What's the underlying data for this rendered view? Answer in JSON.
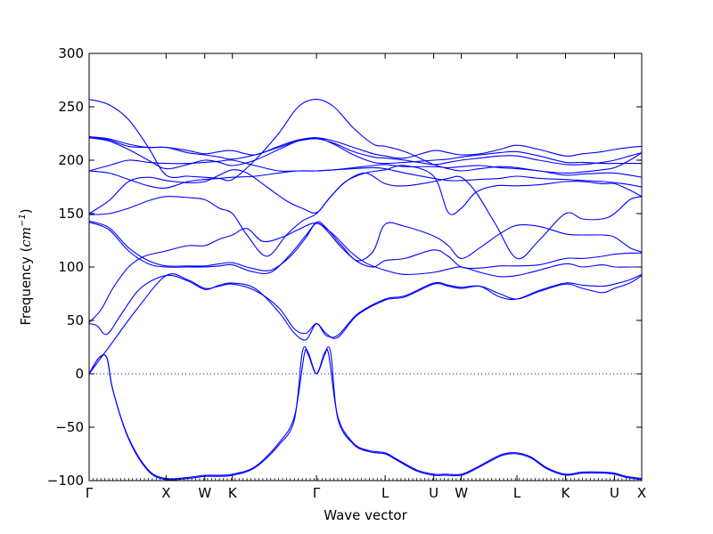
{
  "chart_data": {
    "type": "line",
    "xlabel": "Wave vector",
    "ylabel_main": "Frequency (",
    "ylabel_unit": "cm",
    "ylabel_exp": "−1",
    "ylabel_close": ")",
    "ylim": [
      -100,
      300
    ],
    "yticks": [
      -100,
      -50,
      0,
      50,
      100,
      150,
      200,
      250,
      300
    ],
    "ytick_labels": [
      "−100",
      "−50",
      "0",
      "50",
      "100",
      "150",
      "200",
      "250",
      "300"
    ],
    "xlim": [
      0,
      14
    ],
    "xticks": [
      {
        "x": 0,
        "label": "Γ"
      },
      {
        "x": 1.95,
        "label": "X"
      },
      {
        "x": 2.93,
        "label": "W"
      },
      {
        "x": 3.63,
        "label": "K"
      },
      {
        "x": 5.76,
        "label": "Γ"
      },
      {
        "x": 7.5,
        "label": "L"
      },
      {
        "x": 8.73,
        "label": "U"
      },
      {
        "x": 9.43,
        "label": "W"
      },
      {
        "x": 10.84,
        "label": "L"
      },
      {
        "x": 12.07,
        "label": "K"
      },
      {
        "x": 13.31,
        "label": "U"
      },
      {
        "x": 14.0,
        "label": "X"
      }
    ],
    "zero_line": {
      "y": 0,
      "style": "dotted",
      "color": "#0000ff"
    },
    "grid": false,
    "legend": "none",
    "line_color": "#0000ff",
    "series": [
      {
        "x": [
          0,
          0.25,
          0.45,
          0.6,
          1.0,
          1.5,
          1.95,
          2.5,
          2.93,
          3.3,
          3.63,
          4.2,
          4.8,
          5.2,
          5.45,
          5.55,
          5.76,
          5.97,
          6.07,
          6.3,
          6.7,
          7.1,
          7.5,
          7.8,
          8.3,
          8.73,
          9.0,
          9.43,
          9.8,
          10.2,
          10.5,
          10.84,
          11.2,
          11.6,
          12.07,
          12.5,
          13.0,
          13.31,
          13.6,
          14.0
        ],
        "values": [
          0,
          15,
          15,
          -15,
          -60,
          -90,
          -98,
          -97,
          -95,
          -95,
          -94,
          -87,
          -65,
          -40,
          18,
          18,
          0,
          18,
          18,
          -40,
          -65,
          -72,
          -74,
          -80,
          -90,
          -94,
          -94,
          -94,
          -88,
          -80,
          -75,
          -74,
          -78,
          -88,
          -94,
          -92,
          -92,
          -93,
          -96,
          -98
        ]
      },
      {
        "x": [
          0,
          0.25,
          0.45,
          0.6,
          1.0,
          1.5,
          1.95,
          2.5,
          2.93,
          3.3,
          3.63,
          4.2,
          4.8,
          5.2,
          5.4,
          5.55,
          5.76,
          5.97,
          6.12,
          6.3,
          6.7,
          7.1,
          7.5,
          7.8,
          8.3,
          8.73,
          9.0,
          9.43,
          9.8,
          10.2,
          10.5,
          10.84,
          11.2,
          11.6,
          12.07,
          12.5,
          13.0,
          13.31,
          13.6,
          14.0
        ],
        "values": [
          0,
          15,
          15,
          -15,
          -61,
          -91,
          -99,
          -98,
          -96,
          -96,
          -95,
          -88,
          -67,
          -43,
          20,
          20,
          0,
          20,
          20,
          -42,
          -66,
          -73,
          -75,
          -81,
          -91,
          -95,
          -95,
          -95,
          -89,
          -81,
          -76,
          -75,
          -79,
          -89,
          -95,
          -93,
          -93,
          -94,
          -97,
          -99
        ]
      },
      {
        "x": [
          0,
          0.6,
          1.2,
          1.95,
          2.5,
          2.93,
          3.3,
          3.63,
          4.2,
          4.8,
          5.2,
          5.5,
          5.76,
          6.0,
          6.3,
          6.8,
          7.5,
          8.0,
          8.73,
          9.1,
          9.43,
          9.9,
          10.4,
          10.84,
          11.4,
          12.07,
          12.5,
          13.0,
          13.31,
          13.7,
          14.0
        ],
        "values": [
          0,
          30,
          60,
          92,
          88,
          80,
          82,
          84,
          78,
          62,
          42,
          38,
          47,
          38,
          34,
          55,
          69,
          72,
          84,
          82,
          80,
          82,
          75,
          70,
          77,
          84,
          80,
          76,
          80,
          85,
          92
        ]
      },
      {
        "x": [
          0,
          0.2,
          0.45,
          0.8,
          1.3,
          1.95,
          2.5,
          2.93,
          3.3,
          3.63,
          4.2,
          4.8,
          5.2,
          5.5,
          5.76,
          6.0,
          6.3,
          6.8,
          7.5,
          8.0,
          8.73,
          9.1,
          9.43,
          9.9,
          10.4,
          10.84,
          11.4,
          12.07,
          12.5,
          13.0,
          13.31,
          13.7,
          14.0
        ],
        "values": [
          47,
          45,
          37,
          55,
          80,
          92,
          87,
          79,
          83,
          85,
          80,
          58,
          38,
          32,
          47,
          36,
          36,
          56,
          70,
          73,
          85,
          83,
          81,
          82,
          72,
          70,
          78,
          85,
          83,
          82,
          84,
          88,
          93
        ]
      },
      {
        "x": [
          0,
          0.3,
          0.6,
          1.0,
          1.4,
          1.95,
          2.5,
          2.93,
          3.3,
          3.63,
          4.0,
          4.4,
          4.9,
          5.3,
          5.76,
          6.2,
          6.6,
          7.0,
          7.5,
          8.0,
          8.73,
          9.1,
          9.43,
          9.9,
          10.4,
          10.84,
          11.3,
          12.07,
          12.5,
          13.0,
          13.31,
          13.7,
          14.0
        ],
        "values": [
          48,
          60,
          80,
          100,
          110,
          115,
          120,
          120,
          126,
          130,
          136,
          124,
          128,
          135,
          141,
          130,
          115,
          104,
          97,
          93,
          95,
          98,
          100,
          95,
          91,
          92,
          96,
          103,
          100,
          102,
          100,
          100,
          100
        ]
      },
      {
        "x": [
          0,
          0.5,
          1.0,
          1.5,
          1.95,
          2.5,
          2.93,
          3.3,
          3.63,
          4.1,
          4.6,
          5.1,
          5.5,
          5.76,
          6.0,
          6.4,
          6.8,
          7.2,
          7.5,
          8.0,
          8.73,
          9.1,
          9.43,
          9.9,
          10.4,
          10.84,
          11.4,
          12.07,
          12.5,
          13.0,
          13.31,
          13.7,
          14.0
        ],
        "values": [
          142,
          135,
          115,
          103,
          100,
          100,
          100,
          101,
          102,
          96,
          95,
          112,
          130,
          141,
          135,
          118,
          105,
          100,
          106,
          108,
          116,
          110,
          100,
          99,
          101,
          101,
          102,
          108,
          108,
          110,
          112,
          113,
          113
        ]
      },
      {
        "x": [
          0,
          0.5,
          1.0,
          1.5,
          1.95,
          2.5,
          2.93,
          3.3,
          3.63,
          4.1,
          4.6,
          5.1,
          5.5,
          5.76,
          6.0,
          6.4,
          6.8,
          7.2,
          7.5,
          8.0,
          8.73,
          9.1,
          9.43,
          9.9,
          10.4,
          10.84,
          11.4,
          12.07,
          12.5,
          13.0,
          13.31,
          13.7,
          14.0
        ],
        "values": [
          143,
          137,
          118,
          106,
          101,
          101,
          101,
          103,
          104,
          99,
          97,
          110,
          128,
          142,
          137,
          120,
          106,
          115,
          140,
          138,
          129,
          120,
          108,
          118,
          131,
          139,
          138,
          131,
          130,
          130,
          128,
          118,
          114
        ]
      },
      {
        "x": [
          0,
          0.5,
          1.0,
          1.5,
          1.95,
          2.5,
          2.93,
          3.3,
          3.63,
          4.0,
          4.5,
          5.0,
          5.4,
          5.76,
          6.1,
          6.5,
          7.0,
          7.5,
          8.0,
          8.73,
          9.1,
          9.43,
          9.8,
          10.3,
          10.84,
          11.4,
          12.07,
          12.5,
          13.0,
          13.31,
          13.7,
          14.0
        ],
        "values": [
          149,
          150,
          155,
          162,
          166,
          165,
          163,
          155,
          150,
          130,
          110,
          130,
          143,
          150,
          165,
          180,
          188,
          178,
          176,
          180,
          183,
          184,
          170,
          140,
          108,
          125,
          150,
          145,
          145,
          150,
          163,
          166
        ]
      },
      {
        "x": [
          0,
          0.5,
          1.0,
          1.5,
          1.95,
          2.5,
          2.93,
          3.3,
          3.63,
          4.0,
          4.5,
          5.0,
          5.4,
          5.76,
          6.1,
          6.5,
          7.0,
          7.5,
          8.0,
          8.73,
          9.1,
          9.43,
          9.8,
          10.3,
          10.84,
          11.4,
          12.07,
          12.5,
          13.0,
          13.31,
          13.7,
          14.0
        ],
        "values": [
          150,
          162,
          180,
          184,
          181,
          179,
          180,
          186,
          191,
          188,
          175,
          162,
          155,
          151,
          165,
          180,
          188,
          191,
          195,
          185,
          151,
          155,
          170,
          176,
          176,
          177,
          180,
          180,
          178,
          178,
          172,
          166
        ]
      },
      {
        "x": [
          0,
          0.5,
          1.0,
          1.5,
          1.95,
          2.5,
          2.93,
          3.3,
          3.63,
          4.2,
          4.8,
          5.3,
          5.76,
          6.2,
          6.7,
          7.2,
          7.5,
          8.0,
          8.73,
          9.1,
          9.43,
          9.9,
          10.4,
          10.84,
          11.4,
          12.07,
          12.5,
          13.0,
          13.31,
          13.7,
          14.0
        ],
        "values": [
          190,
          188,
          182,
          176,
          174,
          180,
          182,
          183,
          184,
          185,
          188,
          190,
          190,
          191,
          192,
          193,
          192,
          188,
          183,
          181,
          181,
          182,
          183,
          185,
          183,
          182,
          181,
          180,
          179,
          177,
          175
        ]
      },
      {
        "x": [
          0,
          0.5,
          1.0,
          1.5,
          1.95,
          2.5,
          2.93,
          3.3,
          3.63,
          4.2,
          4.8,
          5.3,
          5.76,
          6.2,
          6.7,
          7.2,
          7.5,
          8.0,
          8.73,
          9.1,
          9.43,
          9.9,
          10.4,
          10.84,
          11.4,
          12.07,
          12.5,
          13.0,
          13.31,
          13.7,
          14.0
        ],
        "values": [
          190,
          195,
          200,
          198,
          197,
          197,
          198,
          199,
          200,
          195,
          190,
          190,
          190,
          191,
          193,
          195,
          196,
          194,
          194,
          193,
          194,
          195,
          193,
          192,
          190,
          186,
          187,
          188,
          188,
          186,
          184
        ]
      },
      {
        "x": [
          0,
          0.5,
          1.0,
          1.5,
          1.95,
          2.5,
          2.93,
          3.3,
          3.63,
          4.2,
          4.8,
          5.3,
          5.76,
          6.2,
          6.7,
          7.2,
          7.5,
          8.0,
          8.73,
          9.1,
          9.43,
          9.9,
          10.4,
          10.84,
          11.4,
          12.07,
          12.5,
          13.0,
          13.31,
          13.7,
          14.0
        ],
        "values": [
          221,
          218,
          210,
          200,
          192,
          196,
          200,
          198,
          195,
          200,
          210,
          218,
          221,
          215,
          205,
          198,
          197,
          198,
          200,
          201,
          203,
          205,
          207,
          208,
          204,
          198,
          198,
          197,
          197,
          197,
          197
        ]
      },
      {
        "x": [
          0,
          0.5,
          1.0,
          1.5,
          1.95,
          2.5,
          2.93,
          3.3,
          3.63,
          4.2,
          4.8,
          5.3,
          5.76,
          6.2,
          6.7,
          7.2,
          7.5,
          8.0,
          8.73,
          9.1,
          9.43,
          9.9,
          10.4,
          10.84,
          11.4,
          12.07,
          12.5,
          13.0,
          13.31,
          13.7,
          14.0
        ],
        "values": [
          222,
          219,
          213,
          212,
          212,
          207,
          205,
          203,
          201,
          205,
          212,
          218,
          220,
          216,
          208,
          203,
          202,
          200,
          196,
          198,
          200,
          202,
          204,
          204,
          200,
          196,
          196,
          198,
          200,
          204,
          207
        ]
      },
      {
        "x": [
          0,
          0.5,
          1.0,
          1.5,
          1.95,
          2.5,
          2.93,
          3.3,
          3.63,
          4.2,
          4.8,
          5.3,
          5.76,
          6.2,
          6.7,
          7.2,
          7.5,
          8.0,
          8.73,
          9.1,
          9.43,
          9.9,
          10.4,
          10.84,
          11.4,
          12.07,
          12.5,
          13.0,
          13.31,
          13.7,
          14.0
        ],
        "values": [
          222,
          220,
          215,
          212,
          212,
          209,
          206,
          208,
          209,
          205,
          213,
          219,
          221,
          218,
          212,
          206,
          204,
          202,
          209,
          207,
          205,
          206,
          210,
          214,
          210,
          204,
          206,
          208,
          210,
          212,
          213
        ]
      },
      {
        "x": [
          0,
          0.5,
          1.0,
          1.5,
          1.95,
          2.5,
          2.93,
          3.3,
          3.63,
          4.2,
          4.8,
          5.3,
          5.76,
          6.2,
          6.7,
          7.2,
          7.5,
          8.0,
          8.73,
          9.1,
          9.43,
          9.9,
          10.4,
          10.84,
          11.4,
          12.07,
          12.5,
          13.0,
          13.31,
          13.7,
          14.0
        ],
        "values": [
          257,
          252,
          238,
          212,
          186,
          185,
          184,
          183,
          182,
          200,
          225,
          250,
          257,
          250,
          230,
          215,
          213,
          208,
          196,
          192,
          190,
          192,
          194,
          193,
          190,
          188,
          189,
          191,
          193,
          200,
          207
        ]
      }
    ]
  }
}
